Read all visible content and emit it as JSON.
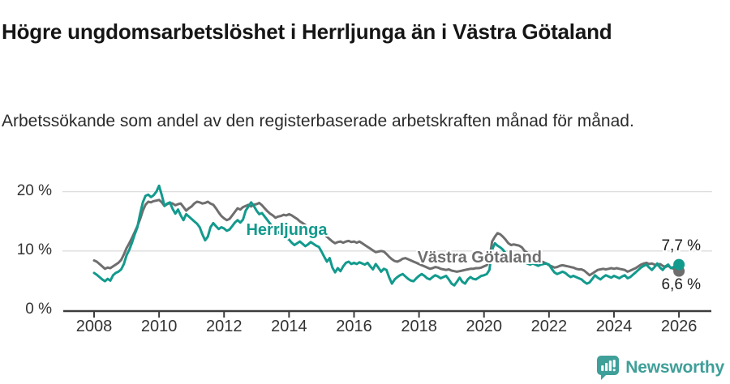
{
  "chart_data": {
    "type": "line",
    "title": "Högre ungdomsarbetslöshet i Herrljunga än i Västra Götaland",
    "subtitle": "Arbetssökande som andel av den registerbaserade arbetskraften månad för månad.",
    "x_start": 2008.0,
    "x_step_months": 1,
    "xlim": [
      2007.05,
      2026.99
    ],
    "ylim": [
      0,
      22
    ],
    "grid": "horizontal-y",
    "x_ticks": [
      2008,
      2010,
      2012,
      2014,
      2016,
      2018,
      2020,
      2022,
      2024,
      2026
    ],
    "x_tick_labels": [
      "2008",
      "2010",
      "2012",
      "2014",
      "2016",
      "2018",
      "2020",
      "2022",
      "2024",
      "2026"
    ],
    "y_ticks": [
      0,
      10,
      20
    ],
    "y_tick_labels": [
      "0 %",
      "10 %",
      "20 %"
    ],
    "colors": {
      "grid": "#dcdcdc",
      "axis": "#3c3c3c",
      "tick_text": "#333333"
    },
    "series": [
      {
        "id": "vastra-gotaland",
        "name": "Västra Götaland",
        "color": "#6e6e6e",
        "end_label": "6,6 %",
        "end_label_dy": 18,
        "label": {
          "x": 2017.95,
          "y": 8.6
        },
        "values": [
          8.4,
          8.2,
          7.8,
          7.4,
          7.0,
          7.2,
          7.1,
          7.4,
          7.7,
          8.0,
          8.5,
          9.4,
          10.5,
          11.3,
          12.2,
          13.2,
          14.2,
          15.4,
          16.8,
          17.8,
          18.3,
          18.2,
          18.4,
          18.5,
          18.6,
          18.2,
          17.6,
          17.9,
          18.1,
          18.0,
          17.7,
          17.9,
          18.0,
          17.4,
          16.8,
          17.2,
          17.5,
          18.0,
          18.3,
          18.2,
          18.0,
          18.1,
          18.3,
          18.0,
          17.8,
          17.2,
          16.5,
          15.9,
          15.5,
          15.2,
          15.4,
          16.0,
          16.6,
          17.2,
          17.0,
          17.4,
          17.6,
          17.8,
          17.5,
          17.8,
          17.9,
          18.1,
          17.7,
          17.2,
          16.7,
          16.3,
          16.0,
          15.6,
          15.8,
          15.9,
          16.1,
          16.0,
          16.2,
          16.0,
          15.7,
          15.4,
          15.0,
          14.7,
          14.4,
          14.1,
          13.9,
          13.7,
          13.5,
          13.4,
          13.2,
          12.8,
          12.4,
          12.0,
          11.6,
          11.3,
          11.5,
          11.6,
          11.4,
          11.6,
          11.7,
          11.5,
          11.6,
          11.4,
          11.6,
          11.3,
          11.0,
          10.7,
          10.4,
          10.1,
          9.8,
          9.9,
          10.0,
          9.9,
          9.5,
          9.0,
          8.6,
          8.3,
          8.2,
          8.4,
          8.7,
          8.8,
          8.6,
          8.4,
          8.2,
          8.0,
          7.8,
          7.6,
          7.4,
          7.2,
          7.0,
          7.1,
          7.3,
          7.2,
          7.0,
          6.9,
          6.8,
          6.9,
          6.7,
          6.6,
          6.5,
          6.6,
          6.7,
          6.8,
          6.9,
          7.0,
          7.0,
          7.1,
          7.1,
          7.2,
          7.4,
          7.6,
          8.6,
          11.6,
          12.4,
          13.0,
          12.8,
          12.4,
          11.9,
          11.3,
          11.0,
          11.1,
          11.0,
          10.9,
          10.6,
          10.0,
          9.7,
          9.4,
          9.1,
          8.8,
          8.5,
          8.3,
          8.1,
          7.9,
          7.6,
          7.4,
          7.2,
          7.3,
          7.5,
          7.6,
          7.5,
          7.4,
          7.3,
          7.2,
          7.0,
          6.9,
          6.9,
          6.7,
          6.3,
          5.9,
          6.2,
          6.5,
          6.8,
          6.9,
          7.0,
          6.9,
          7.0,
          7.1,
          7.0,
          7.1,
          7.0,
          6.9,
          6.8,
          6.5,
          6.7,
          6.9,
          7.1,
          7.4,
          7.7,
          7.9,
          8.0,
          7.8,
          7.9,
          7.7,
          7.6,
          7.8,
          7.5,
          7.3,
          7.5,
          7.2,
          7.0,
          6.8,
          6.6
        ]
      },
      {
        "id": "herrljunga",
        "name": "Herrljunga",
        "color": "#129a8d",
        "end_label": "7,7 %",
        "end_label_dy": -22,
        "label": {
          "x": 2012.68,
          "y": 13.3
        },
        "values": [
          6.3,
          6.0,
          5.6,
          5.2,
          4.9,
          5.3,
          5.0,
          5.9,
          6.3,
          6.5,
          6.9,
          7.8,
          9.3,
          10.2,
          11.4,
          12.8,
          14.0,
          16.3,
          18.2,
          19.3,
          19.5,
          19.1,
          19.4,
          20.0,
          21.0,
          19.4,
          17.6,
          18.0,
          18.2,
          17.1,
          16.3,
          17.0,
          16.0,
          15.2,
          16.2,
          15.8,
          15.4,
          15.0,
          14.6,
          14.0,
          12.8,
          11.8,
          12.4,
          14.0,
          14.7,
          14.2,
          13.7,
          14.0,
          13.8,
          13.4,
          13.6,
          14.2,
          14.8,
          15.2,
          14.8,
          15.3,
          16.8,
          17.5,
          18.2,
          17.6,
          16.8,
          16.2,
          16.4,
          15.8,
          15.2,
          14.6,
          13.9,
          13.6,
          13.2,
          12.8,
          12.5,
          12.2,
          11.9,
          11.4,
          11.0,
          11.3,
          11.6,
          11.2,
          10.8,
          11.1,
          11.5,
          11.2,
          10.9,
          10.7,
          9.9,
          9.0,
          8.2,
          8.8,
          7.2,
          6.4,
          7.1,
          6.6,
          7.4,
          8.0,
          8.2,
          7.8,
          8.0,
          7.8,
          8.1,
          7.9,
          7.7,
          8.0,
          7.4,
          6.9,
          7.8,
          7.2,
          6.5,
          7.0,
          6.8,
          5.5,
          4.5,
          5.2,
          5.6,
          5.9,
          6.1,
          5.7,
          5.3,
          5.0,
          4.9,
          5.4,
          5.8,
          6.1,
          5.8,
          5.4,
          5.2,
          5.6,
          5.9,
          5.7,
          5.4,
          5.6,
          5.8,
          5.2,
          4.5,
          4.2,
          4.8,
          5.5,
          4.8,
          4.5,
          5.2,
          5.6,
          5.3,
          5.2,
          5.5,
          5.8,
          5.9,
          6.1,
          6.8,
          10.2,
          11.3,
          10.9,
          10.6,
          10.2,
          9.6,
          9.2,
          8.8,
          8.7,
          8.9,
          8.6,
          8.3,
          8.1,
          7.9,
          7.7,
          7.9,
          7.7,
          7.5,
          7.7,
          7.8,
          7.9,
          7.7,
          7.0,
          6.4,
          6.1,
          6.3,
          6.5,
          6.3,
          5.9,
          5.6,
          5.8,
          5.6,
          5.4,
          5.2,
          4.8,
          4.5,
          4.7,
          5.3,
          5.9,
          5.5,
          5.2,
          5.6,
          5.9,
          5.7,
          5.5,
          5.8,
          5.6,
          5.4,
          5.7,
          5.9,
          5.4,
          5.6,
          6.0,
          6.4,
          6.8,
          7.2,
          7.5,
          7.7,
          7.2,
          6.8,
          7.3,
          7.9,
          7.2,
          6.8,
          7.4,
          7.7,
          7.1,
          7.3,
          7.6,
          7.7
        ]
      }
    ]
  },
  "branding": {
    "name": "Newsworthy",
    "color": "#3f9f99"
  }
}
